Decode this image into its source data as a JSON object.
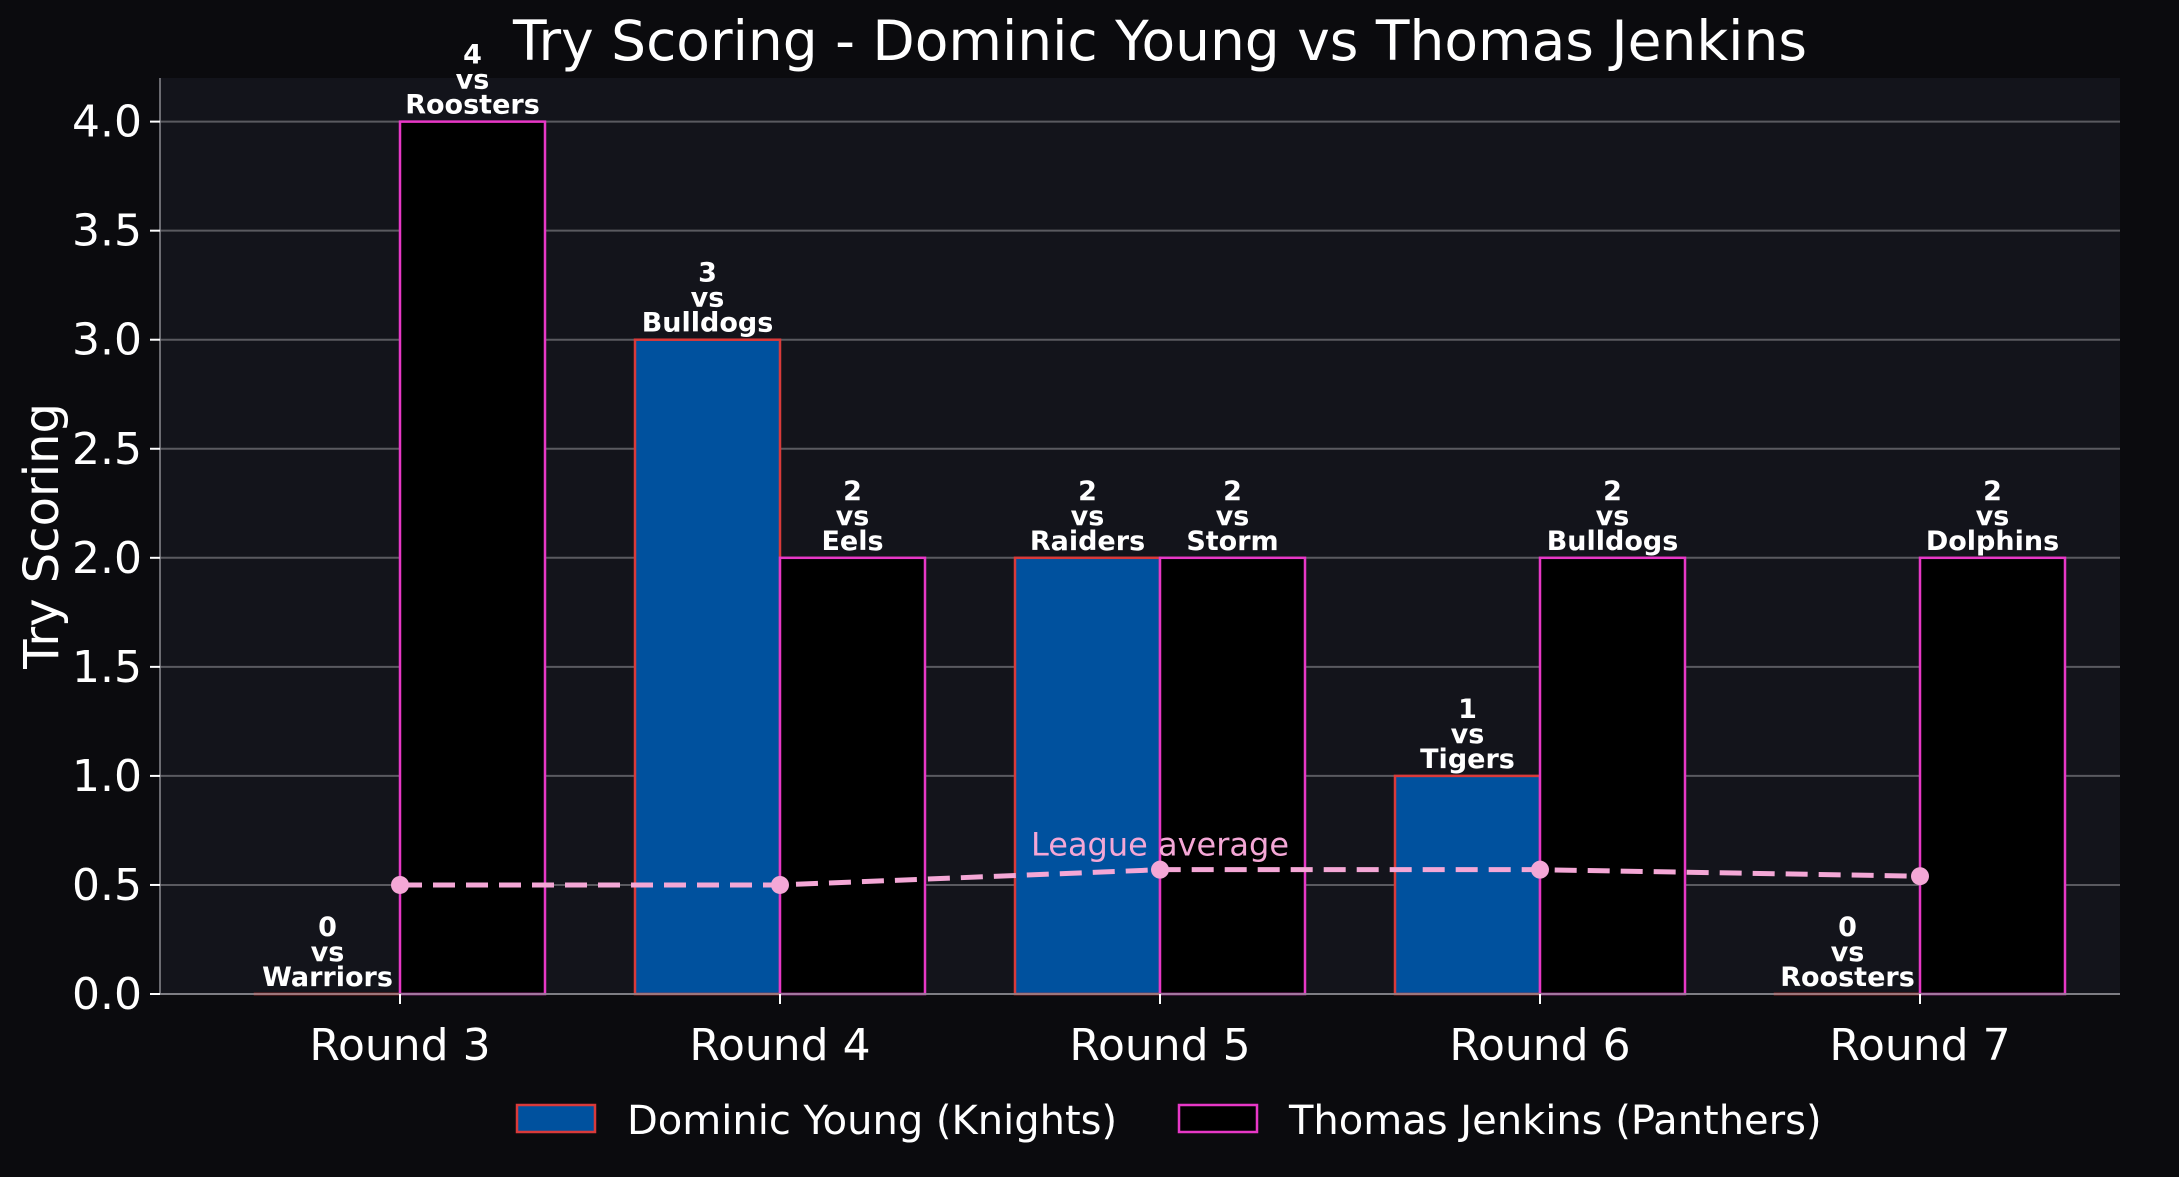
{
  "chart_data": {
    "type": "bar",
    "title": "Try Scoring - Dominic Young vs Thomas Jenkins",
    "xlabel": "",
    "ylabel": "Try Scoring",
    "ylim": [
      0,
      4.2
    ],
    "yticks": [
      "0.0",
      "0.5",
      "1.0",
      "1.5",
      "2.0",
      "2.5",
      "3.0",
      "3.5",
      "4.0"
    ],
    "grid": "y",
    "legend_position": "bottom",
    "categories": [
      "Round 3",
      "Round 4",
      "Round 5",
      "Round 6",
      "Round 7"
    ],
    "series": [
      {
        "name": "Dominic Young (Knights)",
        "color": "#00519e",
        "edge": "#d93a3a",
        "values": [
          0,
          3,
          2,
          1,
          0
        ],
        "opponents": [
          "Warriors",
          "Bulldogs",
          "Raiders",
          "Tigers",
          "Roosters"
        ]
      },
      {
        "name": "Thomas Jenkins (Panthers)",
        "color": "#000000",
        "edge": "#e838c7",
        "values": [
          4,
          2,
          2,
          2,
          2
        ],
        "opponents": [
          "Roosters",
          "Eels",
          "Storm",
          "Bulldogs",
          "Dolphins"
        ]
      }
    ],
    "league_average": {
      "label": "League average",
      "color": "#f4a7d6",
      "values": [
        0.5,
        0.5,
        0.57,
        0.57,
        0.54
      ]
    },
    "vs_text": "vs"
  },
  "colors": {
    "background": "#0b0b0e",
    "plot_background": "#13141b",
    "grid": "#5a5a60"
  }
}
